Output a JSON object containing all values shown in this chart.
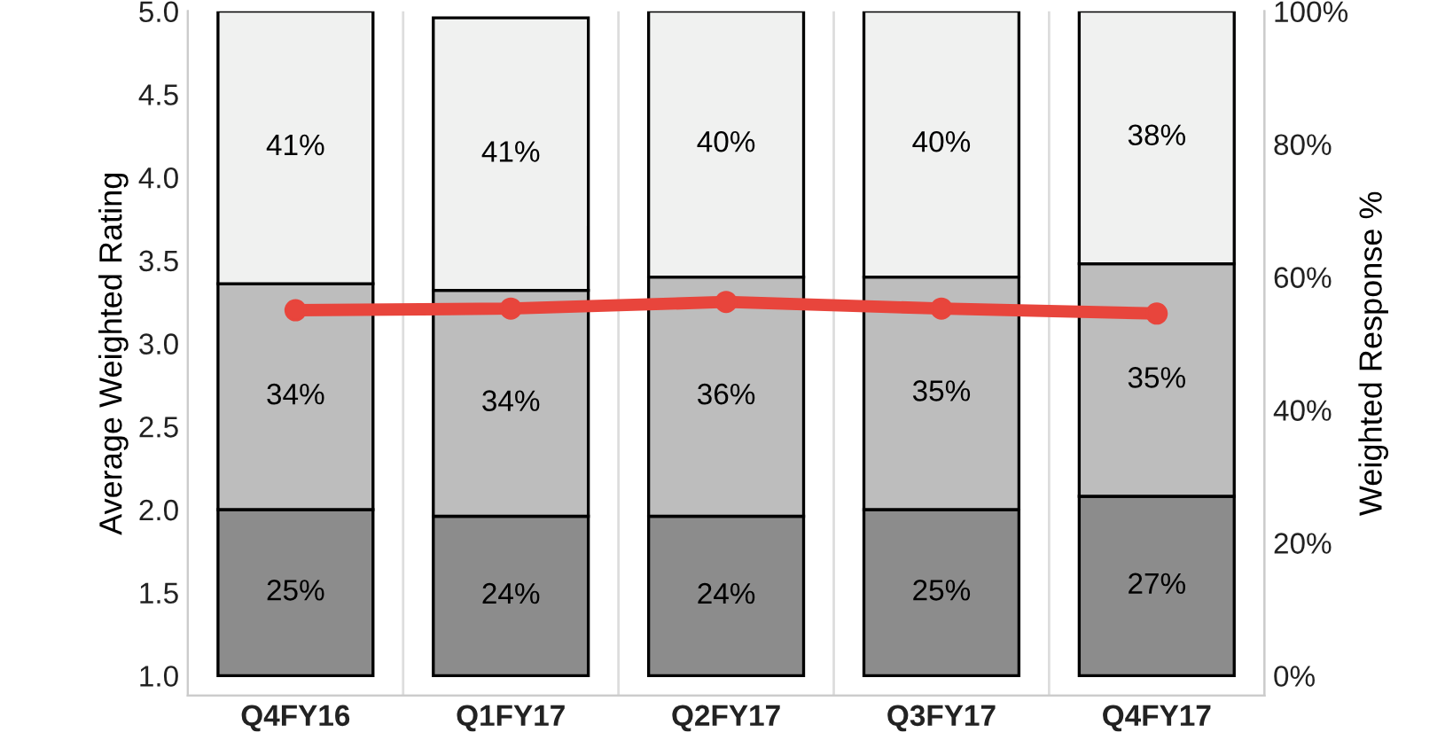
{
  "chart_data": {
    "type": "bar",
    "stacked": true,
    "ylabel": "Average Weighted Rating",
    "y2label": "Weighted Response %",
    "categories": [
      "Q4FY16",
      "Q1FY17",
      "Q2FY17",
      "Q3FY17",
      "Q4FY17"
    ],
    "series": [
      {
        "axis": "y2",
        "color": "#8c8c8c",
        "values": [
          25,
          24,
          24,
          25,
          27
        ],
        "value_labels": [
          "25%",
          "24%",
          "24%",
          "25%",
          "27%"
        ]
      },
      {
        "axis": "y2",
        "color": "#bdbdbd",
        "values": [
          34,
          34,
          36,
          35,
          35
        ],
        "value_labels": [
          "34%",
          "34%",
          "36%",
          "35%",
          "35%"
        ]
      },
      {
        "axis": "y2",
        "color": "#f0f1f0",
        "values": [
          41,
          41,
          40,
          40,
          38
        ],
        "value_labels": [
          "41%",
          "41%",
          "40%",
          "40%",
          "38%"
        ]
      },
      {
        "type": "line",
        "axis": "y",
        "color": "#e8453c",
        "marker": "circle",
        "values": [
          3.2,
          3.21,
          3.25,
          3.21,
          3.18
        ]
      }
    ],
    "ylim": [
      0.88,
      5.0
    ],
    "yticks": [
      {
        "value": 1,
        "label": "1.0"
      },
      1.5,
      {
        "value": 2,
        "label": "2.0"
      },
      2.5,
      {
        "value": 3,
        "label": "3.0"
      },
      3.5,
      {
        "value": 4,
        "label": "4.0"
      },
      4.5,
      {
        "value": 5,
        "label": "5.0"
      }
    ],
    "y2lim": [
      -3,
      100
    ],
    "y2ticks": [
      {
        "value": 0,
        "label": "0%"
      },
      {
        "value": 20,
        "label": "20%"
      },
      {
        "value": 40,
        "label": "40%"
      },
      {
        "value": 60,
        "label": "60%"
      },
      {
        "value": 80,
        "label": "80%"
      },
      {
        "value": 100,
        "label": "100%"
      }
    ]
  }
}
